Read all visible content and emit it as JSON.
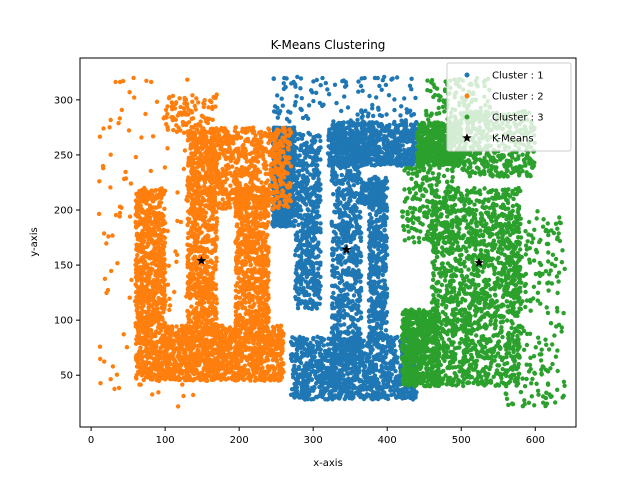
{
  "chart_data": {
    "type": "scatter",
    "title": "K-Means Clustering",
    "xlabel": "x-axis",
    "ylabel": "y-axis",
    "xlim": [
      -15,
      655
    ],
    "ylim": [
      3,
      338
    ],
    "xticks": [
      0,
      100,
      200,
      300,
      400,
      500,
      600
    ],
    "yticks": [
      50,
      100,
      150,
      200,
      250,
      300
    ],
    "grid": false,
    "legend_position": "top-right",
    "series": [
      {
        "name": "Cluster : 1",
        "color": "#1f77b4",
        "marker": "circle"
      },
      {
        "name": "Cluster : 2",
        "color": "#ff7f0e",
        "marker": "circle"
      },
      {
        "name": "Cluster : 3",
        "color": "#2ca02c",
        "marker": "circle"
      },
      {
        "name": "K-Means",
        "color": "#000000",
        "marker": "star",
        "points": [
          [
            149,
            154
          ],
          [
            345,
            164
          ],
          [
            524,
            152
          ]
        ]
      }
    ]
  }
}
